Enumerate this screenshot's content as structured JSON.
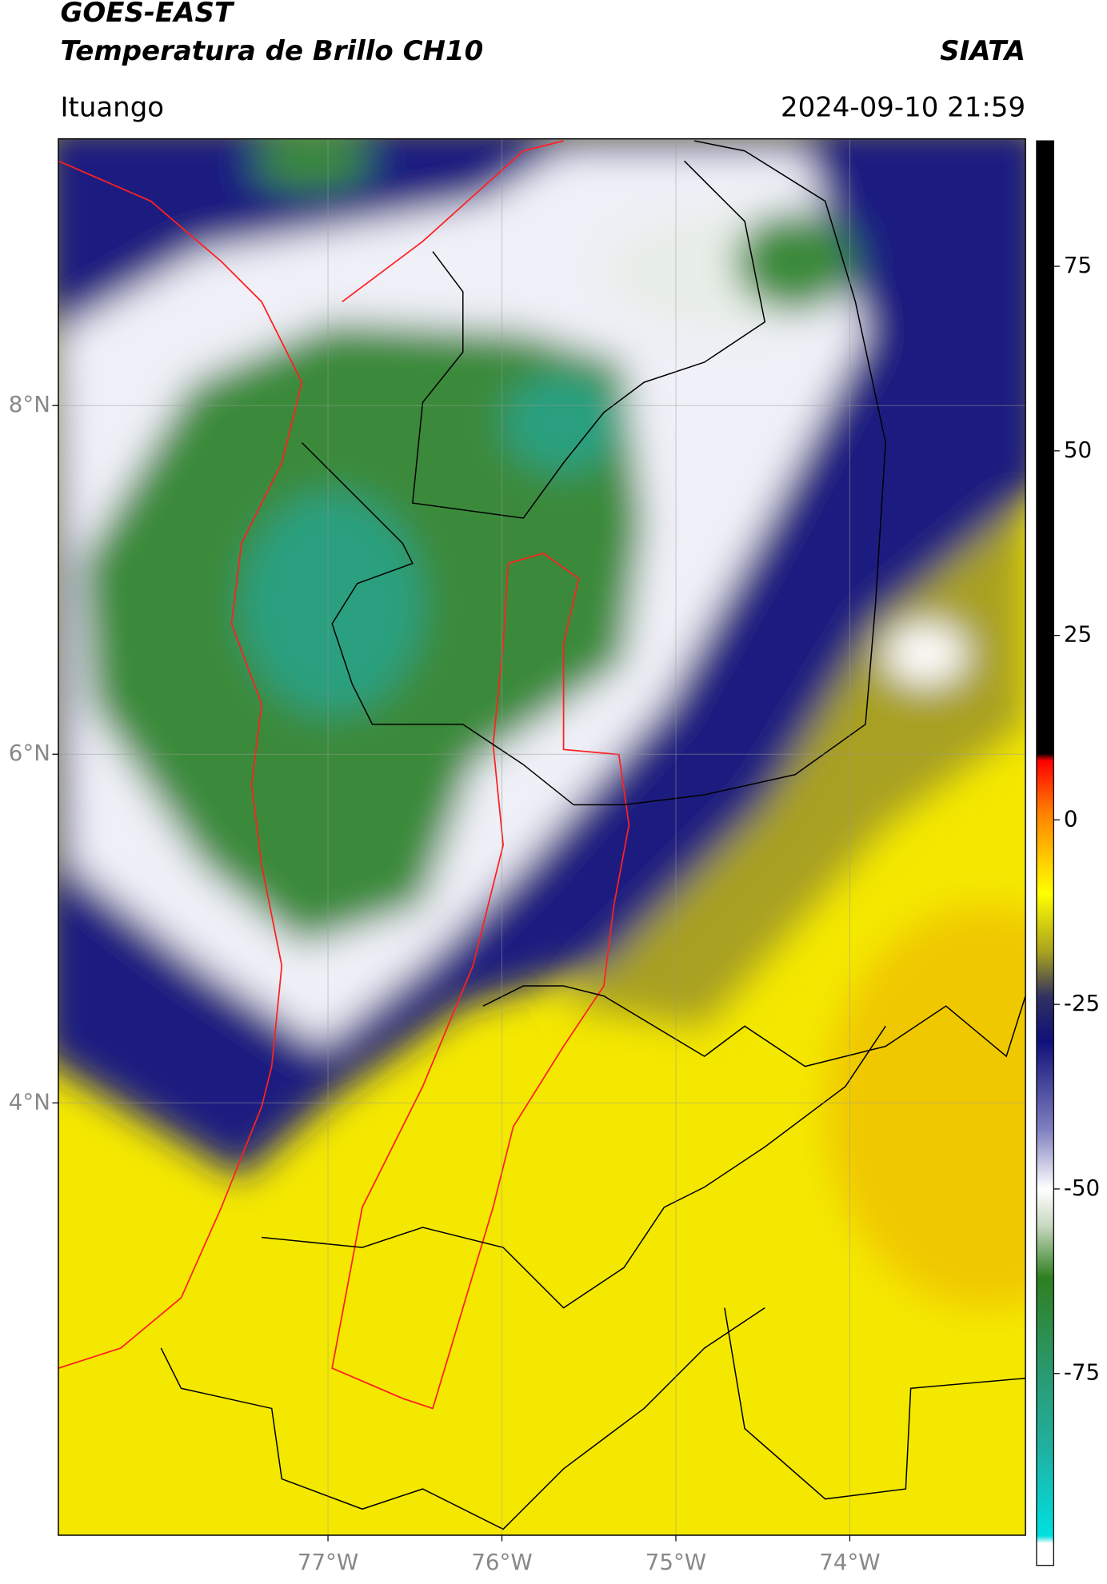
{
  "header": {
    "title": "GOES-EAST",
    "subtitle": "Temperatura de Brillo CH10",
    "source": "SIATA",
    "location": "Ituango",
    "datetime": "2024-09-10 21:59"
  },
  "map": {
    "xlim": [
      -78.55,
      -72.99
    ],
    "ylim": [
      1.52,
      9.53
    ],
    "xticks": [
      {
        "value": -77,
        "label": "77°W"
      },
      {
        "value": -76,
        "label": "76°W"
      },
      {
        "value": -75,
        "label": "75°W"
      },
      {
        "value": -74,
        "label": "74°W"
      }
    ],
    "yticks": [
      {
        "value": 8,
        "label": "8°N"
      },
      {
        "value": 6,
        "label": "6°N"
      },
      {
        "value": 4,
        "label": "4°N"
      }
    ],
    "grid": true
  },
  "colorbar": {
    "range": [
      -101,
      92
    ],
    "ticks": [
      75,
      50,
      25,
      0,
      -25,
      -50,
      -75
    ],
    "stops": [
      {
        "value": -101,
        "color": "#ffffff"
      },
      {
        "value": -98,
        "color": "#ffffff"
      },
      {
        "value": -97,
        "color": "#00e0e0"
      },
      {
        "value": -85,
        "color": "#20b0a0"
      },
      {
        "value": -75,
        "color": "#2a9a70"
      },
      {
        "value": -62,
        "color": "#2f7f20"
      },
      {
        "value": -55,
        "color": "#c8d8c0"
      },
      {
        "value": -50,
        "color": "#ffffff"
      },
      {
        "value": -42,
        "color": "#8080c0"
      },
      {
        "value": -30,
        "color": "#10107a"
      },
      {
        "value": -24,
        "color": "#303060"
      },
      {
        "value": -18,
        "color": "#a8a020"
      },
      {
        "value": -10,
        "color": "#ffff00"
      },
      {
        "value": -5,
        "color": "#ffc800"
      },
      {
        "value": 1,
        "color": "#ff8000"
      },
      {
        "value": 8,
        "color": "#ff0000"
      },
      {
        "value": 9,
        "color": "#000000"
      },
      {
        "value": 92,
        "color": "#000000"
      }
    ]
  }
}
